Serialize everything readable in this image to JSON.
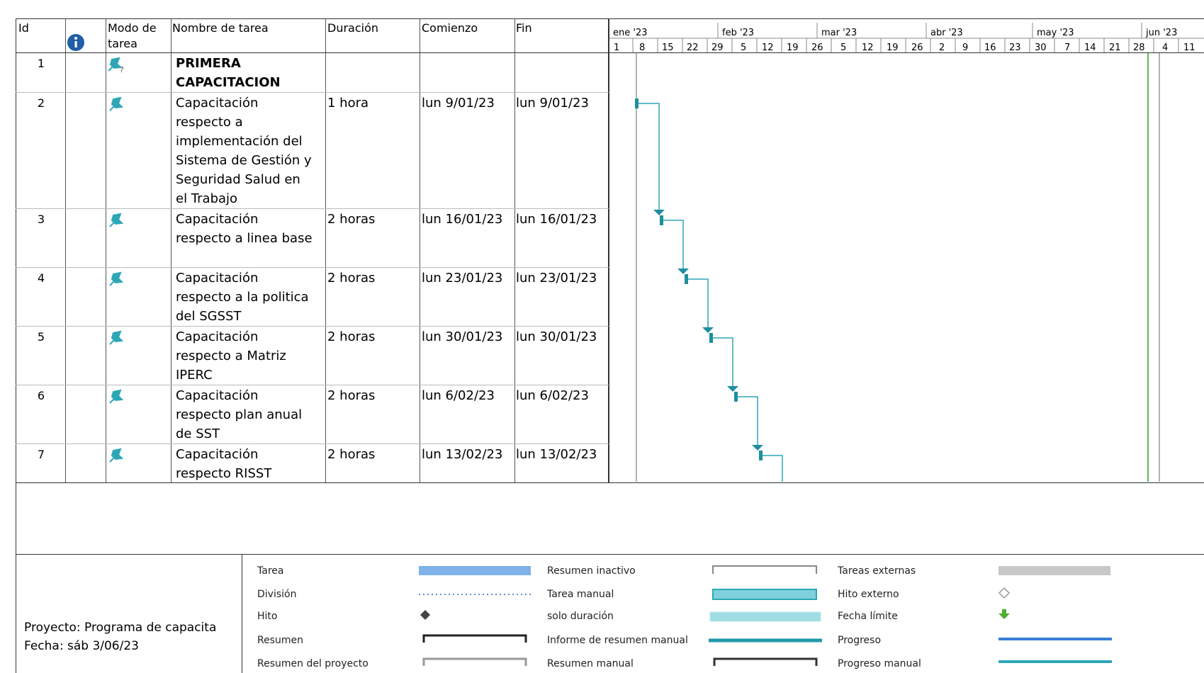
{
  "header": {
    "id": "Id",
    "mode_line1": "Modo de",
    "mode_line2": "tarea",
    "name": "Nombre de tarea",
    "duration": "Duración",
    "start": "Comienzo",
    "finish": "Fin",
    "months": [
      "ene '23",
      "feb '23",
      "mar '23",
      "abr '23",
      "may '23",
      "jun '23"
    ],
    "days": [
      "1",
      "8",
      "15",
      "22",
      "29",
      "5",
      "12",
      "19",
      "26",
      "5",
      "12",
      "19",
      "26",
      "2",
      "9",
      "16",
      "23",
      "30",
      "7",
      "14",
      "21",
      "28",
      "4",
      "11"
    ]
  },
  "tasks": [
    {
      "id": "1",
      "name_lines": [
        "PRIMERA",
        "CAPACITACION"
      ],
      "duration": "",
      "start": "",
      "finish": "",
      "summary": true
    },
    {
      "id": "2",
      "name_lines": [
        "Capacitación",
        "respecto a",
        "implementación del",
        "Sistema de Gestión y",
        "Seguridad Salud en",
        "el Trabajo"
      ],
      "duration": "1 hora",
      "start": "lun 9/01/23",
      "finish": "lun 9/01/23"
    },
    {
      "id": "3",
      "name_lines": [
        "Capacitación",
        "respecto a linea base"
      ],
      "duration": "2 horas",
      "start": "lun 16/01/23",
      "finish": "lun 16/01/23"
    },
    {
      "id": "4",
      "name_lines": [
        "Capacitación",
        "respecto a la politica",
        "del SGSST"
      ],
      "duration": "2 horas",
      "start": "lun 23/01/23",
      "finish": "lun 23/01/23"
    },
    {
      "id": "5",
      "name_lines": [
        "Capacitación",
        "respecto a Matriz",
        "IPERC"
      ],
      "duration": "2 horas",
      "start": "lun 30/01/23",
      "finish": "lun 30/01/23"
    },
    {
      "id": "6",
      "name_lines": [
        "Capacitación",
        "respecto plan anual",
        "de SST"
      ],
      "duration": "2 horas",
      "start": "lun 6/02/23",
      "finish": "lun 6/02/23"
    },
    {
      "id": "7",
      "name_lines": [
        "Capacitación",
        "respecto RISST"
      ],
      "duration": "2 horas",
      "start": "lun 13/02/23",
      "finish": "lun 13/02/23"
    }
  ],
  "footer": {
    "project": "Proyecto: Programa de capacita",
    "date": "Fecha: sáb 3/06/23"
  },
  "legend": [
    {
      "label": "Tarea",
      "symbol": "task-bar"
    },
    {
      "label": "División",
      "symbol": "split-dots"
    },
    {
      "label": "Hito",
      "symbol": "milestone-diamond"
    },
    {
      "label": "Resumen",
      "symbol": "summary-bracket"
    },
    {
      "label": "Resumen del proyecto",
      "symbol": "project-summary-bracket"
    },
    {
      "label": "Resumen inactivo",
      "symbol": "inactive-summary-bracket"
    },
    {
      "label": "Tarea manual",
      "symbol": "manual-task-bar"
    },
    {
      "label": "solo duración",
      "symbol": "duration-only-bar"
    },
    {
      "label": "Informe de resumen manual",
      "symbol": "manual-summary-rollup-line"
    },
    {
      "label": "Resumen manual",
      "symbol": "manual-summary-bracket"
    },
    {
      "label": "Tareas externas",
      "symbol": "external-task-bar"
    },
    {
      "label": "Hito externo",
      "symbol": "external-milestone-diamond"
    },
    {
      "label": "Fecha límite",
      "symbol": "deadline-arrow"
    },
    {
      "label": "Progreso",
      "symbol": "progress-line"
    },
    {
      "label": "Progreso manual",
      "symbol": "manual-progress-line"
    }
  ],
  "colors": {
    "task": "#7fb2e8",
    "manual": "#2ea6b6",
    "manual_light": "#7fd0da",
    "external": "#c8c8c8",
    "progress": "#3b7fd8",
    "deadline": "#4caf30",
    "today_line": "#5cb85c"
  },
  "icons": {
    "info": "info-icon",
    "pin": "manual-task-pin-icon",
    "pin_question": "manual-task-pin-question-icon"
  }
}
